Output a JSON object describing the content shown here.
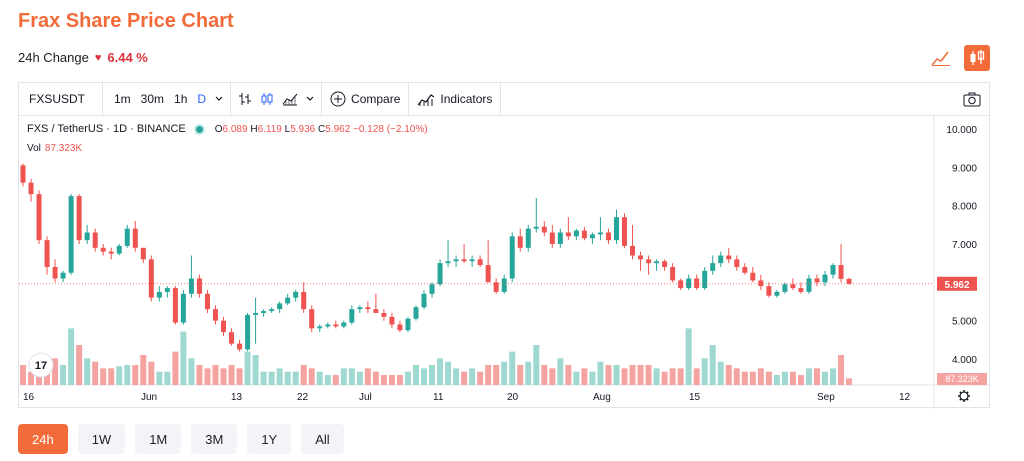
{
  "page": {
    "title": "Frax Share Price Chart",
    "change_label": "24h Change",
    "change_value": "6.44 %",
    "ranges": [
      "24h",
      "1W",
      "1M",
      "3M",
      "1Y",
      "All"
    ],
    "active_range": "24h"
  },
  "toolbar": {
    "symbol": "FXSUSDT",
    "intervals": [
      "1m",
      "30m",
      "1h",
      "D"
    ],
    "active_interval": "D",
    "compare_label": "Compare",
    "indicators_label": "Indicators"
  },
  "legend": {
    "pair": "FXS / TetherUS · 1D · BINANCE",
    "open_label": "O",
    "open": "6.089",
    "high_label": "H",
    "high": "6.119",
    "low_label": "L",
    "low": "5.936",
    "close_label": "C",
    "close": "5.962",
    "change": "−0.128 (−2.10%)",
    "vol_label": "Vol",
    "vol": "87.323K"
  },
  "colors": {
    "accent": "#f26b38",
    "up": "#26a69a",
    "down": "#ef5350",
    "up_vol": "#9fd8d1",
    "down_vol": "#f5a3a1"
  },
  "chart_data": {
    "type": "candlestick",
    "x_ticks": [
      "16",
      "Jun",
      "13",
      "22",
      "Jul",
      "11",
      "20",
      "Aug",
      "15",
      "Sep",
      "12"
    ],
    "y_ticks": [
      "10.000",
      "9.000",
      "8.000",
      "7.000",
      "6.000",
      "5.000",
      "4.000"
    ],
    "ylim": [
      3.3,
      10.3
    ],
    "last_price_label": "5.962",
    "last_price": 5.962,
    "last_volume_label": "87.323K",
    "candles": [
      [
        9.05,
        9.1,
        8.5,
        8.6,
        3.0
      ],
      [
        8.6,
        8.7,
        8.1,
        8.3,
        2.0
      ],
      [
        8.3,
        8.4,
        7.0,
        7.1,
        2.5
      ],
      [
        7.1,
        7.2,
        6.2,
        6.4,
        2.0
      ],
      [
        6.4,
        6.6,
        6.0,
        6.1,
        4.0
      ],
      [
        6.1,
        6.3,
        6.0,
        6.25,
        3.0
      ],
      [
        6.25,
        8.3,
        6.2,
        8.25,
        8.5
      ],
      [
        8.25,
        8.3,
        7.0,
        7.1,
        6.0
      ],
      [
        7.1,
        7.5,
        7.0,
        7.3,
        4.0
      ],
      [
        7.3,
        7.4,
        6.8,
        6.9,
        3.5
      ],
      [
        6.9,
        7.0,
        6.7,
        6.8,
        2.5
      ],
      [
        6.8,
        6.9,
        6.6,
        6.75,
        2.5
      ],
      [
        6.75,
        7.0,
        6.7,
        6.95,
        2.8
      ],
      [
        6.95,
        7.5,
        6.9,
        7.4,
        3.0
      ],
      [
        7.4,
        7.6,
        6.8,
        6.9,
        3.0
      ],
      [
        6.9,
        6.9,
        6.5,
        6.6,
        4.5
      ],
      [
        6.6,
        6.7,
        5.5,
        5.6,
        3.5
      ],
      [
        5.6,
        5.9,
        5.5,
        5.75,
        2.0
      ],
      [
        5.75,
        5.9,
        5.6,
        5.85,
        2.0
      ],
      [
        5.85,
        5.9,
        4.9,
        4.95,
        5.0
      ],
      [
        4.95,
        5.8,
        4.9,
        5.7,
        8.0
      ],
      [
        5.7,
        6.7,
        5.6,
        6.1,
        4.0
      ],
      [
        6.1,
        6.2,
        5.6,
        5.7,
        3.0
      ],
      [
        5.7,
        5.8,
        5.2,
        5.3,
        2.5
      ],
      [
        5.3,
        5.4,
        4.9,
        5.0,
        3.0
      ],
      [
        5.0,
        5.1,
        4.6,
        4.7,
        2.5
      ],
      [
        4.7,
        4.8,
        4.35,
        4.4,
        3.0
      ],
      [
        4.4,
        4.5,
        4.2,
        4.25,
        2.5
      ],
      [
        4.25,
        5.2,
        4.2,
        5.15,
        5.0
      ],
      [
        5.15,
        5.6,
        4.4,
        5.2,
        4.5
      ],
      [
        5.2,
        5.3,
        5.1,
        5.25,
        2.0
      ],
      [
        5.25,
        5.35,
        5.2,
        5.3,
        2.0
      ],
      [
        5.3,
        5.5,
        5.2,
        5.45,
        2.5
      ],
      [
        5.45,
        5.7,
        5.4,
        5.6,
        2.0
      ],
      [
        5.6,
        5.8,
        5.5,
        5.75,
        2.0
      ],
      [
        5.75,
        6.0,
        5.2,
        5.3,
        3.0
      ],
      [
        5.3,
        5.4,
        4.7,
        4.8,
        2.5
      ],
      [
        4.8,
        4.9,
        4.7,
        4.85,
        2.0
      ],
      [
        4.85,
        4.95,
        4.8,
        4.9,
        1.5
      ],
      [
        4.9,
        5.0,
        4.8,
        4.85,
        1.5
      ],
      [
        4.85,
        5.0,
        4.8,
        4.95,
        2.5
      ],
      [
        4.95,
        5.4,
        4.9,
        5.3,
        2.5
      ],
      [
        5.3,
        5.4,
        5.2,
        5.35,
        2.0
      ],
      [
        5.35,
        5.5,
        5.2,
        5.3,
        2.5
      ],
      [
        5.3,
        5.7,
        5.2,
        5.2,
        2.0
      ],
      [
        5.2,
        5.3,
        5.0,
        5.1,
        1.5
      ],
      [
        5.1,
        5.2,
        4.8,
        4.9,
        1.5
      ],
      [
        4.9,
        5.0,
        4.7,
        4.75,
        1.5
      ],
      [
        4.75,
        5.1,
        4.7,
        5.05,
        2.0
      ],
      [
        5.05,
        5.4,
        5.0,
        5.35,
        3.0
      ],
      [
        5.35,
        5.8,
        5.3,
        5.7,
        2.5
      ],
      [
        5.7,
        6.0,
        5.6,
        5.95,
        3.0
      ],
      [
        5.95,
        6.6,
        5.9,
        6.5,
        4.0
      ],
      [
        6.5,
        7.1,
        6.4,
        6.55,
        3.5
      ],
      [
        6.55,
        6.7,
        6.4,
        6.6,
        2.5
      ],
      [
        6.6,
        7.0,
        6.5,
        6.55,
        2.0
      ],
      [
        6.55,
        6.7,
        6.4,
        6.6,
        2.5
      ],
      [
        6.6,
        6.7,
        6.4,
        6.45,
        2.0
      ],
      [
        6.45,
        7.1,
        6.0,
        6.0,
        3.0
      ],
      [
        6.0,
        6.1,
        5.7,
        5.75,
        3.0
      ],
      [
        5.75,
        6.2,
        5.7,
        6.1,
        3.5
      ],
      [
        6.1,
        7.3,
        6.0,
        7.2,
        5.0
      ],
      [
        7.2,
        7.4,
        6.8,
        6.9,
        3.0
      ],
      [
        6.9,
        7.5,
        6.8,
        7.4,
        3.5
      ],
      [
        7.4,
        8.2,
        7.3,
        7.45,
        6.0
      ],
      [
        7.45,
        7.6,
        7.2,
        7.3,
        3.0
      ],
      [
        7.3,
        7.5,
        6.9,
        7.0,
        2.5
      ],
      [
        7.0,
        7.4,
        6.9,
        7.3,
        4.0
      ],
      [
        7.3,
        7.7,
        7.1,
        7.2,
        3.0
      ],
      [
        7.2,
        7.4,
        7.1,
        7.35,
        2.0
      ],
      [
        7.35,
        7.45,
        7.1,
        7.15,
        2.5
      ],
      [
        7.15,
        7.3,
        7.0,
        7.25,
        2.0
      ],
      [
        7.25,
        7.7,
        7.1,
        7.3,
        3.5
      ],
      [
        7.3,
        7.4,
        7.0,
        7.1,
        3.0
      ],
      [
        7.1,
        7.9,
        7.0,
        7.7,
        3.0
      ],
      [
        7.7,
        7.8,
        6.9,
        6.95,
        2.5
      ],
      [
        6.95,
        7.5,
        6.6,
        6.7,
        3.0
      ],
      [
        6.7,
        6.8,
        6.3,
        6.6,
        3.0
      ],
      [
        6.6,
        6.7,
        6.2,
        6.5,
        3.0
      ],
      [
        6.5,
        6.6,
        6.3,
        6.55,
        2.5
      ],
      [
        6.55,
        6.6,
        6.3,
        6.4,
        2.0
      ],
      [
        6.4,
        6.5,
        6.0,
        6.05,
        2.5
      ],
      [
        6.05,
        6.1,
        5.8,
        5.85,
        2.5
      ],
      [
        5.85,
        6.2,
        5.8,
        6.1,
        8.5
      ],
      [
        6.1,
        6.2,
        5.8,
        5.85,
        2.5
      ],
      [
        5.85,
        6.4,
        5.8,
        6.3,
        4.0
      ],
      [
        6.3,
        6.7,
        6.2,
        6.5,
        6.0
      ],
      [
        6.5,
        6.8,
        6.4,
        6.7,
        3.5
      ],
      [
        6.7,
        6.9,
        6.5,
        6.6,
        3.0
      ],
      [
        6.6,
        6.7,
        6.3,
        6.4,
        2.5
      ],
      [
        6.4,
        6.5,
        6.2,
        6.25,
        2.0
      ],
      [
        6.25,
        6.4,
        6.0,
        6.05,
        2.0
      ],
      [
        6.05,
        6.2,
        5.8,
        5.9,
        2.5
      ],
      [
        5.9,
        6.0,
        5.6,
        5.65,
        2.0
      ],
      [
        5.65,
        5.8,
        5.6,
        5.75,
        1.5
      ],
      [
        5.75,
        6.0,
        5.7,
        5.95,
        2.0
      ],
      [
        5.95,
        6.1,
        5.8,
        5.85,
        2.0
      ],
      [
        5.85,
        6.0,
        5.7,
        5.75,
        1.5
      ],
      [
        5.75,
        6.2,
        5.7,
        6.1,
        2.5
      ],
      [
        6.1,
        6.2,
        5.9,
        6.0,
        2.5
      ],
      [
        6.0,
        6.3,
        5.9,
        6.2,
        2.0
      ],
      [
        6.2,
        6.5,
        6.1,
        6.45,
        2.5
      ],
      [
        6.45,
        7.0,
        6.0,
        6.09,
        4.5
      ],
      [
        6.089,
        6.119,
        5.936,
        5.962,
        1.0
      ]
    ]
  }
}
